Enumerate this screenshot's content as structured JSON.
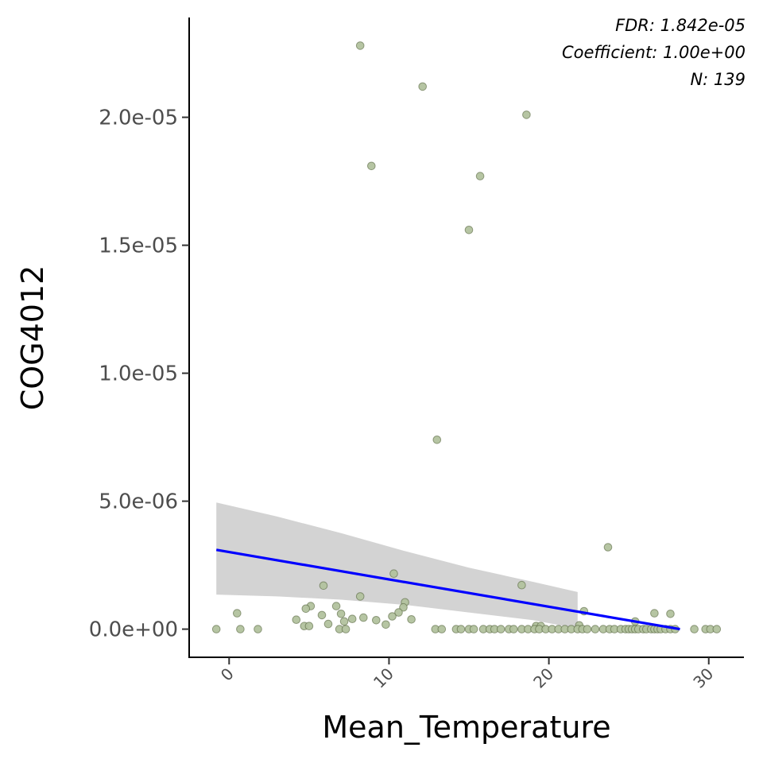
{
  "chart_data": {
    "type": "scatter",
    "xlabel": "Mean_Temperature",
    "ylabel": "COG4012",
    "xlim": [
      -2.5,
      32.2
    ],
    "ylim": [
      -1.1e-06,
      2.39e-05
    ],
    "x_ticks": [
      0,
      10,
      20,
      30
    ],
    "x_tick_labels": [
      "0",
      "10",
      "20",
      "30"
    ],
    "y_ticks": [
      0,
      5e-06,
      1e-05,
      1.5e-05,
      2e-05
    ],
    "y_tick_labels": [
      "0.0e+00",
      "5.0e-06",
      "1.0e-05",
      "1.5e-05",
      "2.0e-05"
    ],
    "grid": false,
    "annotations": [
      "FDR: 1.842e-05",
      "Coefficient: 1.00e+00",
      "N: 139"
    ],
    "colors": {
      "point_fill": "#b2c29e",
      "point_stroke": "#56663f",
      "fit_line": "#0000ff",
      "confidence_band": "#d3d3d3"
    },
    "points": [
      {
        "x": 8.2,
        "y": 2.28e-05
      },
      {
        "x": 12.1,
        "y": 2.12e-05
      },
      {
        "x": 18.6,
        "y": 2.01e-05
      },
      {
        "x": 8.9,
        "y": 1.81e-05
      },
      {
        "x": 15.7,
        "y": 1.77e-05
      },
      {
        "x": 15.0,
        "y": 1.56e-05
      },
      {
        "x": 13.0,
        "y": 7.4e-06
      },
      {
        "x": 23.7,
        "y": 3.2e-06
      },
      {
        "x": 10.3,
        "y": 2.17e-06
      },
      {
        "x": 18.3,
        "y": 1.72e-06
      },
      {
        "x": 5.9,
        "y": 1.7e-06
      },
      {
        "x": 8.2,
        "y": 1.28e-06
      },
      {
        "x": 11.0,
        "y": 1.05e-06
      },
      {
        "x": 6.7,
        "y": 9e-07
      },
      {
        "x": 5.1,
        "y": 9e-07
      },
      {
        "x": 10.9,
        "y": 8.5e-07
      },
      {
        "x": 4.8,
        "y": 8e-07
      },
      {
        "x": 22.2,
        "y": 7e-07
      },
      {
        "x": 0.5,
        "y": 6.2e-07
      },
      {
        "x": 10.6,
        "y": 6.5e-07
      },
      {
        "x": 26.6,
        "y": 6.2e-07
      },
      {
        "x": 27.6,
        "y": 6e-07
      },
      {
        "x": 7.0,
        "y": 6e-07
      },
      {
        "x": 5.8,
        "y": 5.5e-07
      },
      {
        "x": 10.2,
        "y": 5e-07
      },
      {
        "x": 8.4,
        "y": 4.5e-07
      },
      {
        "x": 7.7,
        "y": 4e-07
      },
      {
        "x": 4.2,
        "y": 3.7e-07
      },
      {
        "x": 9.2,
        "y": 3.5e-07
      },
      {
        "x": 11.4,
        "y": 3.8e-07
      },
      {
        "x": 7.2,
        "y": 3e-07
      },
      {
        "x": 25.4,
        "y": 3e-07
      },
      {
        "x": 6.2,
        "y": 2e-07
      },
      {
        "x": 9.8,
        "y": 1.8e-07
      },
      {
        "x": 4.7,
        "y": 1.2e-07
      },
      {
        "x": 5.0,
        "y": 1.2e-07
      },
      {
        "x": 21.9,
        "y": 1.5e-07
      },
      {
        "x": 19.2,
        "y": 1.2e-07
      },
      {
        "x": 19.5,
        "y": 1.2e-07
      },
      {
        "x": -0.8,
        "y": 0
      },
      {
        "x": 0.7,
        "y": 0
      },
      {
        "x": 1.8,
        "y": 0
      },
      {
        "x": 6.9,
        "y": 0
      },
      {
        "x": 7.3,
        "y": 0
      },
      {
        "x": 12.9,
        "y": 0
      },
      {
        "x": 13.3,
        "y": 0
      },
      {
        "x": 14.2,
        "y": 0
      },
      {
        "x": 14.5,
        "y": 0
      },
      {
        "x": 15.0,
        "y": 0
      },
      {
        "x": 15.3,
        "y": 0
      },
      {
        "x": 15.9,
        "y": 0
      },
      {
        "x": 16.3,
        "y": 0
      },
      {
        "x": 16.6,
        "y": 0
      },
      {
        "x": 17.0,
        "y": 0
      },
      {
        "x": 17.5,
        "y": 0
      },
      {
        "x": 17.8,
        "y": 0
      },
      {
        "x": 18.3,
        "y": 0
      },
      {
        "x": 18.7,
        "y": 0
      },
      {
        "x": 19.1,
        "y": 0
      },
      {
        "x": 19.4,
        "y": 0
      },
      {
        "x": 19.8,
        "y": 0
      },
      {
        "x": 20.2,
        "y": 0
      },
      {
        "x": 20.6,
        "y": 0
      },
      {
        "x": 21.0,
        "y": 0
      },
      {
        "x": 21.4,
        "y": 0
      },
      {
        "x": 21.8,
        "y": 0
      },
      {
        "x": 22.1,
        "y": 0
      },
      {
        "x": 22.4,
        "y": 0
      },
      {
        "x": 22.9,
        "y": 0
      },
      {
        "x": 23.4,
        "y": 0
      },
      {
        "x": 23.8,
        "y": 0
      },
      {
        "x": 24.1,
        "y": 0
      },
      {
        "x": 24.5,
        "y": 0
      },
      {
        "x": 24.8,
        "y": 0
      },
      {
        "x": 25.0,
        "y": 0
      },
      {
        "x": 25.2,
        "y": 0
      },
      {
        "x": 25.4,
        "y": 0
      },
      {
        "x": 25.6,
        "y": 0
      },
      {
        "x": 25.9,
        "y": 0
      },
      {
        "x": 26.1,
        "y": 0
      },
      {
        "x": 26.4,
        "y": 0
      },
      {
        "x": 26.6,
        "y": 0
      },
      {
        "x": 26.8,
        "y": 0
      },
      {
        "x": 27.0,
        "y": 0
      },
      {
        "x": 27.3,
        "y": 0
      },
      {
        "x": 27.6,
        "y": 0
      },
      {
        "x": 27.9,
        "y": 0
      },
      {
        "x": 29.1,
        "y": 0
      },
      {
        "x": 29.8,
        "y": 0
      },
      {
        "x": 30.1,
        "y": 0
      },
      {
        "x": 30.5,
        "y": 0
      }
    ],
    "fit_line": {
      "x": [
        -0.8,
        28.2
      ],
      "y": [
        3.1e-06,
        0
      ]
    },
    "confidence_band": {
      "x": [
        -0.8,
        3.0,
        7.0,
        11.0,
        15.0,
        19.0,
        21.8
      ],
      "upper": [
        4.95e-06,
        4.4e-06,
        3.75e-06,
        3.05e-06,
        2.4e-06,
        1.85e-06,
        1.45e-06
      ],
      "lower": [
        1.35e-06,
        1.28e-06,
        1.15e-06,
        9.5e-07,
        6.5e-07,
        3.5e-07,
        2e-08
      ]
    }
  }
}
